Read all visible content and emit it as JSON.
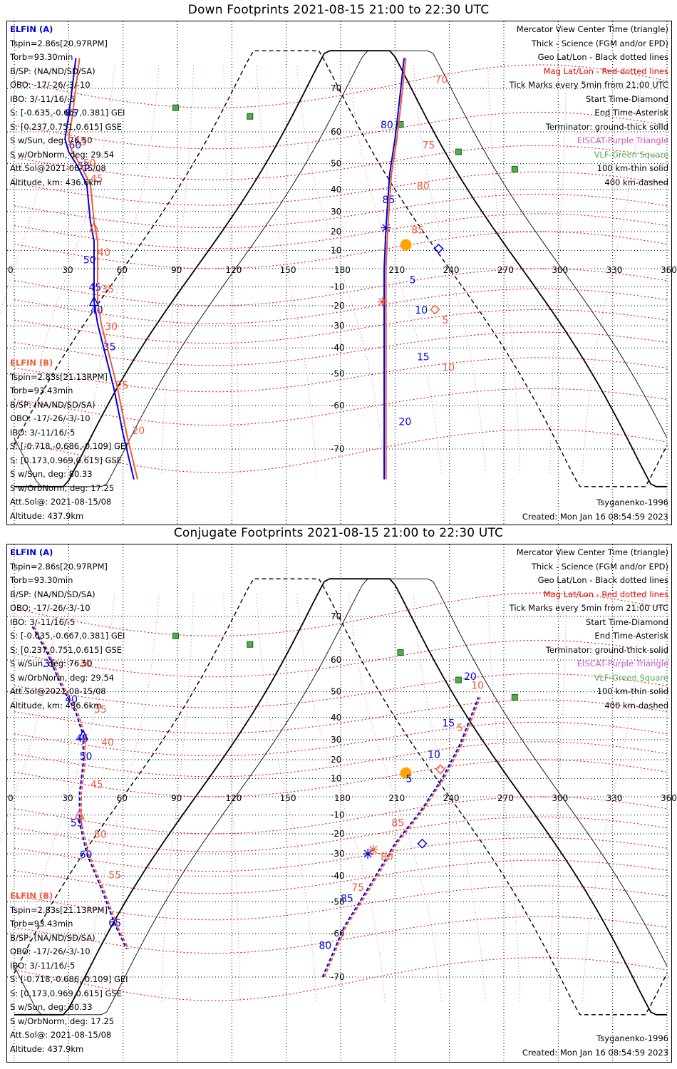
{
  "panels": [
    {
      "id": "down",
      "title": "Down Footprints 2021-08-15 21:00 to 22:30 UTC",
      "info_a": {
        "header": "ELFIN (A)",
        "lines": [
          "Tspin=2.86s[20.97RPM]",
          "Torb=93.30min",
          "B/SP: (NA/ND/SD/SA)",
          "OBO: -17/-26/-3/-10",
          "IBO: 3/-11/16/-5",
          "S: [-0.635,-0.667,0.381] GEI",
          "S: [0.237,0.751,0.615] GSE",
          "S w/Sun, deg: 76.50",
          "S w/OrbNorm, deg: 29.54",
          "Att.Sol@2021-08-15/08",
          "Altitude, km: 436.6km"
        ]
      },
      "info_b": {
        "header": "ELFIN (B)",
        "lines": [
          "Tspin=2.83s[21.13RPM]",
          "Torb=93.43min",
          "B/SP: (NA/ND/SD/SA)",
          "OBO: -17/-26/-3/-10",
          "IBO: 3/-11/16/-5",
          "S: [-0.718,-0.686,-0.109] GEI",
          "S: [0.173,0.969,0.615] GSE",
          "S w/Sun, deg: 80.33",
          "S w/OrbNorm, deg: 17.25",
          "Att.Sol@: 2021-08-15/08",
          "Altitude: 437.9km"
        ]
      },
      "legend": [
        "Mercator View Center Time (triangle)",
        "Thick - Science (FGM and/or EPD)",
        "Geo Lat/Lon - Black dotted lines",
        "Mag Lat/Lon - Red dotted lines",
        "Tick Marks every 5min from 21:00 UTC",
        "Start Time-Diamond",
        "End Time-Asterisk",
        "Terminator: ground-thick solid",
        "EISCAT-Purple Triangle",
        "VLF-Green Square",
        "100 km-thin solid",
        "400 km-dashed"
      ],
      "model": "Tsyganenko-1996",
      "created": "Created: Mon Jan 16 08:54:59 2023"
    },
    {
      "id": "conjugate",
      "title": "Conjugate Footprints 2021-08-15 21:00 to 22:30 UTC",
      "info_a": {
        "header": "ELFIN (A)",
        "lines": [
          "Tspin=2.86s[20.97RPM]",
          "Torb=93.30min",
          "B/SP: (NA/ND/SD/SA)",
          "OBO: -17/-26/-3/-10",
          "IBO: 3/-11/16/-5",
          "S: [-0.635,-0.667,0.381] GEI",
          "S: [0.237,0.751,0.615] GSE",
          "S w/Sun, deg: 76.50",
          "S w/OrbNorm, deg: 29.54",
          "Att.Sol@2021-08-15/08",
          "Altitude, km: 436.6km"
        ]
      },
      "info_b": {
        "header": "ELFIN (B)",
        "lines": [
          "Tspin=2.83s[21.13RPM]",
          "Torb=93.43min",
          "B/SP: (NA/ND/SD/SA)",
          "OBO: -17/-26/-3/-10",
          "IBO: 3/-11/16/-5",
          "S: [-0.718,-0.686,-0.109] GEI",
          "S: [0.173,0.969,0.615] GSE",
          "S w/Sun, deg: 80.33",
          "S w/OrbNorm, deg: 17.25",
          "Att.Sol@: 2021-08-15/08",
          "Altitude: 437.9km"
        ]
      },
      "legend": [
        "Mercator View Center Time (triangle)",
        "Thick - Science (FGM and/or EPD)",
        "Geo Lat/Lon - Black dotted lines",
        "Mag Lat/Lon - Red dotted lines",
        "Tick Marks every 5min from 21:00 UTC",
        "Start Time-Diamond",
        "End Time-Asterisk",
        "Terminator: ground-thick solid",
        "EISCAT-Purple Triangle",
        "VLF-Green Square",
        "100 km-thin solid",
        "400 km-dashed"
      ],
      "model": "Tsyganenko-1996",
      "created": "Created: Mon Jan 16 08:54:59 2023"
    }
  ],
  "colors": {
    "elfin_a": "#0000dd",
    "elfin_b": "#f05a3c",
    "mag_grid": "#e00000",
    "geo_grid": "#000000",
    "terminator": "#000000",
    "vlf_station": "#4caf50",
    "eiscat": "#cc55cc",
    "sun": "#ffa500"
  },
  "chart_data": [
    {
      "type": "scatter",
      "title": "Down Footprints 2021-08-15 21:00 to 22:30 UTC",
      "projection": "mercator",
      "xlim": [
        0,
        360
      ],
      "ylim": [
        -75,
        75
      ],
      "x_ticks": [
        0,
        30,
        60,
        90,
        120,
        150,
        180,
        210,
        240,
        270,
        300,
        330,
        360
      ],
      "y_ticks": [
        -70,
        -60,
        -50,
        -40,
        -30,
        -20,
        -10,
        10,
        20,
        30,
        40,
        50,
        60,
        70
      ],
      "grid": true,
      "legend_position": "top-right",
      "series": [
        {
          "name": "ELFIN (A)",
          "points": [
            [
              34,
              75
            ],
            [
              30,
              64
            ],
            [
              28,
              58
            ],
            [
              30,
              54
            ],
            [
              35,
              49
            ],
            [
              40,
              42
            ],
            [
              42,
              25
            ],
            [
              44,
              15
            ],
            [
              44,
              3
            ],
            [
              44,
              -7
            ],
            [
              44,
              -18
            ],
            [
              46,
              -29
            ],
            [
              50,
              -42
            ],
            [
              55,
              -55
            ],
            [
              60,
              -67
            ],
            [
              66,
              -75
            ]
          ],
          "tick_labels": [
            [
              "65",
              28,
              64
            ],
            [
              "60",
              30,
              55
            ],
            [
              "55",
              35,
              48
            ],
            [
              "50",
              38,
              3
            ],
            [
              "45",
              41,
              -12
            ],
            [
              "40",
              42,
              -24
            ],
            [
              "35",
              49,
              -41
            ]
          ]
        },
        {
          "name": "ELFIN (B)",
          "points": [
            [
              36,
              75
            ],
            [
              32,
              64
            ],
            [
              30,
              58
            ],
            [
              32,
              54
            ],
            [
              37,
              49
            ],
            [
              42,
              42
            ],
            [
              44,
              25
            ],
            [
              46,
              15
            ],
            [
              46,
              3
            ],
            [
              46,
              -7
            ],
            [
              46,
              -18
            ],
            [
              48,
              -29
            ],
            [
              52,
              -42
            ],
            [
              57,
              -55
            ],
            [
              62,
              -67
            ],
            [
              68,
              -75
            ]
          ],
          "tick_labels": [
            [
              "55",
              33,
              56
            ],
            [
              "50",
              38,
              49
            ],
            [
              "45",
              42,
              43
            ],
            [
              "40",
              46,
              7
            ],
            [
              "35",
              48,
              -13
            ],
            [
              "30",
              50,
              -32
            ],
            [
              "25",
              56,
              -55
            ],
            [
              "20",
              65,
              -67
            ]
          ]
        },
        {
          "name": "ELFIN (A) east",
          "points": [
            [
              215,
              75
            ],
            [
              212,
              66
            ],
            [
              210,
              58
            ],
            [
              207,
              46
            ],
            [
              205,
              22
            ],
            [
              204,
              0
            ],
            [
              204,
              -40
            ],
            [
              204,
              -75
            ]
          ],
          "tick_labels": [
            [
              "80",
              202,
              61
            ],
            [
              "85",
              203,
              34
            ],
            [
              "5",
              218,
              -8
            ],
            [
              "10",
              221,
              -24
            ],
            [
              "15",
              222,
              -45
            ],
            [
              "20",
              212,
              -65
            ]
          ],
          "start": [
            234,
            11
          ],
          "end": [
            205,
            22
          ]
        },
        {
          "name": "ELFIN (B) east",
          "points": [
            [
              216,
              75
            ],
            [
              213,
              66
            ],
            [
              211,
              58
            ],
            [
              208,
              46
            ],
            [
              206,
              22
            ],
            [
              205,
              0
            ],
            [
              205,
              -40
            ],
            [
              205,
              -75
            ]
          ],
          "tick_labels": [
            [
              "70",
              232,
              71
            ],
            [
              "75",
              225,
              55
            ],
            [
              "80",
              222,
              40
            ],
            [
              "85",
              219,
              19
            ],
            [
              "5",
              236,
              -29
            ],
            [
              "10",
              236,
              -49
            ]
          ],
          "start": [
            232,
            -22
          ],
          "end": [
            203,
            -18
          ]
        }
      ],
      "markers": [
        {
          "type": "sun",
          "lon": 216,
          "lat": 13
        },
        {
          "type": "vlf",
          "lon": 89,
          "lat": 66
        },
        {
          "type": "vlf",
          "lon": 130,
          "lat": 64
        },
        {
          "type": "vlf",
          "lon": 213,
          "lat": 62
        },
        {
          "type": "vlf",
          "lon": 245,
          "lat": 54
        },
        {
          "type": "vlf",
          "lon": 276,
          "lat": 48
        }
      ]
    },
    {
      "type": "scatter",
      "title": "Conjugate Footprints 2021-08-15 21:00 to 22:30 UTC",
      "projection": "mercator",
      "xlim": [
        0,
        360
      ],
      "ylim": [
        -75,
        75
      ],
      "x_ticks": [
        0,
        30,
        60,
        90,
        120,
        150,
        180,
        210,
        240,
        270,
        300,
        330,
        360
      ],
      "y_ticks": [
        -70,
        -60,
        -50,
        -40,
        -30,
        -20,
        -10,
        10,
        20,
        30,
        40,
        50,
        60,
        70
      ],
      "grid": true,
      "legend_position": "top-right",
      "series": [
        {
          "name": "ELFIN (A)",
          "points": [
            [
              10,
              68
            ],
            [
              18,
              62
            ],
            [
              26,
              52
            ],
            [
              34,
              42
            ],
            [
              38,
              32
            ],
            [
              38,
              18
            ],
            [
              36,
              2
            ],
            [
              36,
              -14
            ],
            [
              40,
              -30
            ],
            [
              48,
              -45
            ],
            [
              56,
              -58
            ],
            [
              62,
              -64
            ]
          ],
          "tick_labels": [
            [
              "35",
              16,
              58
            ],
            [
              "40",
              28,
              46
            ],
            [
              "45",
              34,
              29
            ],
            [
              "50",
              36,
              20
            ],
            [
              "55",
              31,
              -16
            ],
            [
              "60",
              36,
              -32
            ],
            [
              "65",
              52,
              -58
            ]
          ]
        },
        {
          "name": "ELFIN (B)",
          "points": [
            [
              11,
              68
            ],
            [
              19,
              62
            ],
            [
              27,
              52
            ],
            [
              35,
              42
            ],
            [
              39,
              32
            ],
            [
              39,
              18
            ],
            [
              37,
              2
            ],
            [
              37,
              -14
            ],
            [
              41,
              -30
            ],
            [
              49,
              -45
            ],
            [
              57,
              -58
            ],
            [
              63,
              -64
            ]
          ],
          "tick_labels": [
            [
              "30",
              36,
              58
            ],
            [
              "35",
              44,
              42
            ],
            [
              "40",
              48,
              27
            ],
            [
              "45",
              42,
              5
            ],
            [
              "50",
              44,
              -22
            ],
            [
              "55",
              52,
              -41
            ]
          ]
        },
        {
          "name": "ELFIN (A) east",
          "points": [
            [
              170,
              -70
            ],
            [
              182,
              -58
            ],
            [
              196,
              -44
            ],
            [
              210,
              -25
            ],
            [
              224,
              -8
            ],
            [
              236,
              10
            ],
            [
              246,
              28
            ],
            [
              256,
              48
            ]
          ],
          "tick_labels": [
            [
              "80",
              168,
              -64
            ],
            [
              "85",
              180,
              -50
            ],
            [
              "5",
              216,
              8
            ],
            [
              "10",
              228,
              21
            ],
            [
              "15",
              236,
              36
            ],
            [
              "20",
              248,
              54
            ]
          ],
          "start": [
            225,
            -25
          ],
          "end": [
            195,
            -30
          ]
        },
        {
          "name": "ELFIN (B) east",
          "points": [
            [
              171,
              -70
            ],
            [
              183,
              -58
            ],
            [
              197,
              -44
            ],
            [
              211,
              -25
            ],
            [
              225,
              -8
            ],
            [
              237,
              10
            ],
            [
              247,
              28
            ],
            [
              257,
              48
            ]
          ],
          "tick_labels": [
            [
              "75",
              186,
              -46
            ],
            [
              "80",
              202,
              -33
            ],
            [
              "85",
              208,
              -16
            ],
            [
              "5",
              244,
              34
            ],
            [
              "10",
              252,
              51
            ]
          ],
          "start": [
            235,
            15
          ],
          "end": [
            198,
            -28
          ]
        }
      ],
      "markers": [
        {
          "type": "sun",
          "lon": 216,
          "lat": 13
        },
        {
          "type": "vlf",
          "lon": 89,
          "lat": 66
        },
        {
          "type": "vlf",
          "lon": 130,
          "lat": 64
        },
        {
          "type": "vlf",
          "lon": 213,
          "lat": 62
        },
        {
          "type": "vlf",
          "lon": 245,
          "lat": 54
        },
        {
          "type": "vlf",
          "lon": 276,
          "lat": 48
        }
      ]
    }
  ]
}
